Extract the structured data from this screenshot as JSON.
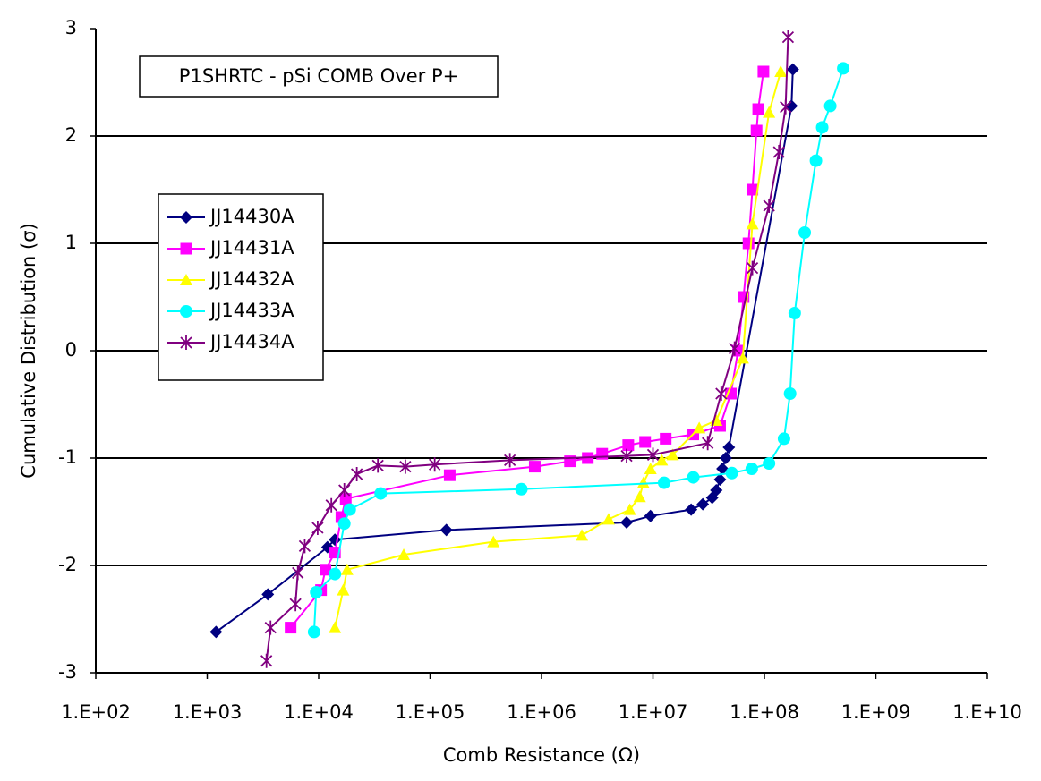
{
  "chart_data": {
    "type": "line",
    "title": "P1SHRTC - pSi COMB Over P+",
    "x_label": "Comb Resistance (Ω)",
    "y_label": "Cumulative Distribution (σ)",
    "xscale": "log",
    "xlim": [
      100,
      10000000000
    ],
    "xticks": [
      {
        "value": 100,
        "label": "1.E+02"
      },
      {
        "value": 1000,
        "label": "1.E+03"
      },
      {
        "value": 10000,
        "label": "1.E+04"
      },
      {
        "value": 100000,
        "label": "1.E+05"
      },
      {
        "value": 1000000,
        "label": "1.E+06"
      },
      {
        "value": 10000000,
        "label": "1.E+07"
      },
      {
        "value": 100000000,
        "label": "1.E+08"
      },
      {
        "value": 1000000000,
        "label": "1.E+09"
      },
      {
        "value": 10000000000,
        "label": "1.E+10"
      }
    ],
    "ylim": [
      -3,
      3
    ],
    "yticks": [
      -3,
      -2,
      -1,
      0,
      1,
      2,
      3
    ],
    "grid": true,
    "legend": "left",
    "series": [
      {
        "name": "JJ14430A",
        "color": "#000080",
        "marker": "diamond",
        "x": [
          1200,
          3500,
          12000,
          14000,
          140000,
          5800000,
          9500000,
          22000000,
          28000000,
          34000000,
          37000000,
          40000000,
          42000000,
          45000000,
          48000000,
          175000000,
          180000000
        ],
        "values": [
          -2.62,
          -2.27,
          -1.83,
          -1.76,
          -1.67,
          -1.6,
          -1.54,
          -1.48,
          -1.43,
          -1.37,
          -1.3,
          -1.2,
          -1.1,
          -1.0,
          -0.9,
          2.28,
          2.62
        ]
      },
      {
        "name": "JJ14431A",
        "color": "#ff00ff",
        "marker": "square",
        "x": [
          5600,
          10500,
          11500,
          14000,
          16000,
          17500,
          150000,
          870000,
          1800000,
          2600000,
          3500000,
          6000000,
          8500000,
          13000000,
          23000000,
          40000000,
          50000000,
          58000000,
          65000000,
          72000000,
          78000000,
          85000000,
          88000000,
          98000000
        ],
        "values": [
          -2.58,
          -2.23,
          -2.04,
          -1.88,
          -1.55,
          -1.38,
          -1.16,
          -1.08,
          -1.03,
          -1.0,
          -0.96,
          -0.88,
          -0.85,
          -0.82,
          -0.78,
          -0.7,
          -0.4,
          0,
          0.5,
          1.0,
          1.5,
          2.05,
          2.25,
          2.6
        ]
      },
      {
        "name": "JJ14432A",
        "color": "#ffff00",
        "marker": "triangle",
        "x": [
          14000,
          16600,
          18000,
          58000,
          370000,
          2300000,
          4000000,
          6200000,
          7600000,
          8200000,
          9500000,
          12000000,
          15000000,
          26000000,
          37000000,
          64000000,
          78000000,
          110000000,
          140000000
        ],
        "values": [
          -2.58,
          -2.23,
          -2.04,
          -1.9,
          -1.78,
          -1.72,
          -1.57,
          -1.48,
          -1.36,
          -1.23,
          -1.1,
          -1.02,
          -0.97,
          -0.72,
          -0.65,
          -0.07,
          1.18,
          2.22,
          2.6
        ]
      },
      {
        "name": "JJ14433A",
        "color": "#00ffff",
        "marker": "circle",
        "x": [
          9100,
          9500,
          14000,
          17000,
          19000,
          36000,
          660000,
          12600000,
          23000000,
          51000000,
          77000000,
          110000000,
          150000000,
          170000000,
          187000000,
          230000000,
          290000000,
          330000000,
          390000000,
          510000000
        ],
        "values": [
          -2.62,
          -2.25,
          -2.08,
          -1.61,
          -1.48,
          -1.33,
          -1.29,
          -1.23,
          -1.18,
          -1.14,
          -1.1,
          -1.05,
          -0.82,
          -0.4,
          0.35,
          1.1,
          1.77,
          2.08,
          2.28,
          2.63
        ]
      },
      {
        "name": "JJ14434A",
        "color": "#800080",
        "marker": "star",
        "x": [
          3400,
          3700,
          6200,
          6500,
          7500,
          9800,
          13000,
          17000,
          22000,
          34000,
          60000,
          110000,
          520000,
          5800000,
          10000000,
          31000000,
          41000000,
          54000000,
          78000000,
          110000000,
          135000000,
          155000000,
          163000000
        ],
        "values": [
          -2.89,
          -2.58,
          -2.36,
          -2.07,
          -1.82,
          -1.65,
          -1.44,
          -1.3,
          -1.15,
          -1.07,
          -1.08,
          -1.06,
          -1.02,
          -0.98,
          -0.97,
          -0.86,
          -0.4,
          0.02,
          0.77,
          1.35,
          1.85,
          2.27,
          2.92
        ]
      }
    ]
  }
}
